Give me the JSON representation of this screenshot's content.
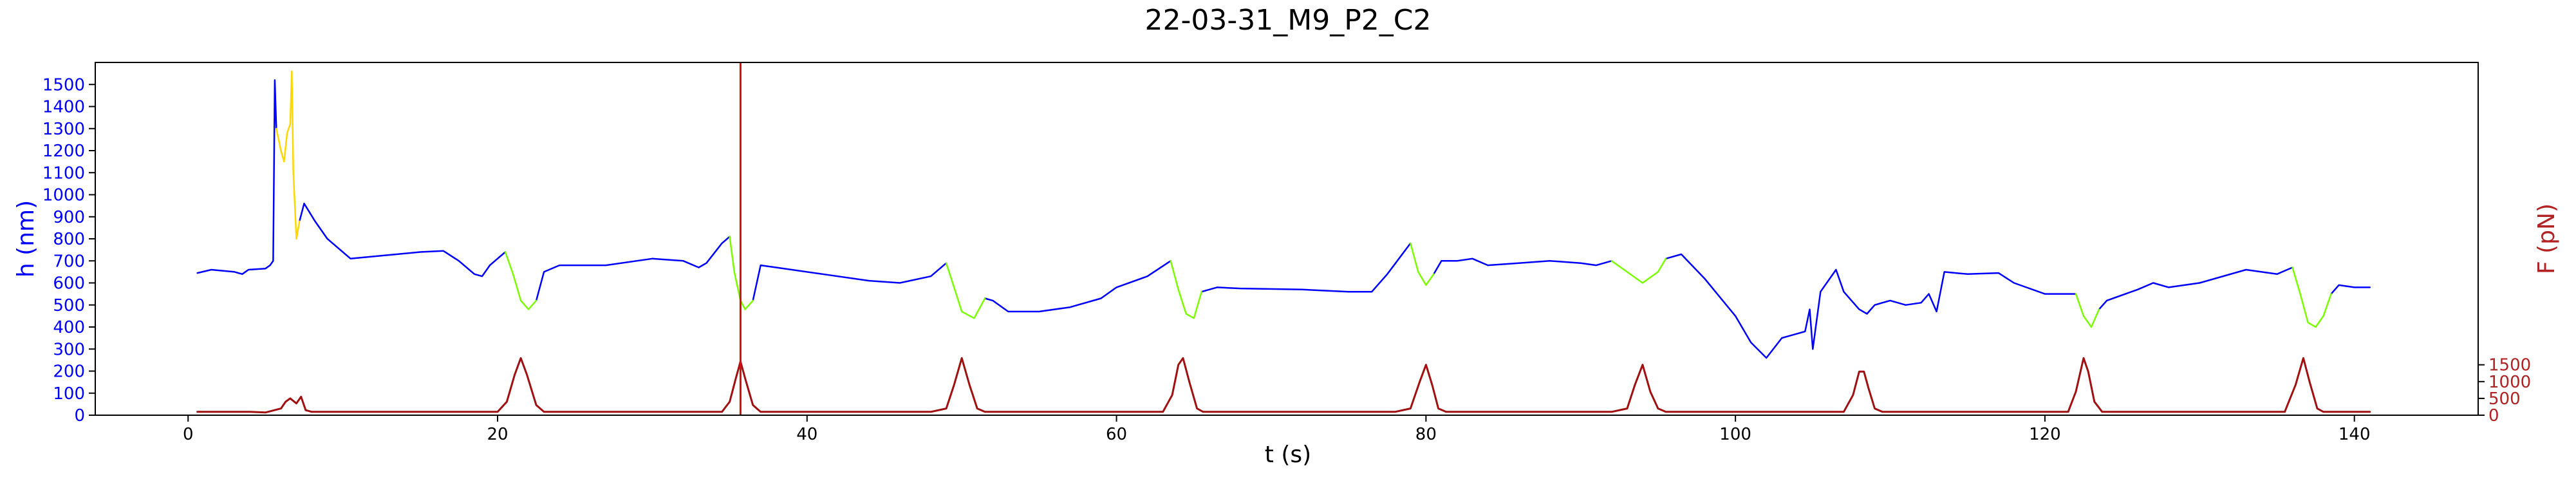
{
  "chart_data": {
    "type": "line",
    "title": "22-03-31_M9_P2_C2",
    "xlabel": "t (s)",
    "ylabel_left": "h (nm)",
    "ylabel_right": "F (pN)",
    "xlim": [
      -6,
      148
    ],
    "ylim_left": [
      0,
      1600
    ],
    "ylim_right": [
      0,
      10500
    ],
    "x_ticks": [
      0,
      20,
      40,
      60,
      80,
      100,
      120,
      140
    ],
    "y_left_ticks": [
      0,
      100,
      200,
      300,
      400,
      500,
      600,
      700,
      800,
      900,
      1000,
      1100,
      1200,
      1300,
      1400,
      1500
    ],
    "y_right_ticks": [
      0,
      500,
      1000,
      1500
    ],
    "colors": {
      "height": "#0000ff",
      "compression": "#7cfc00",
      "anomaly": "#ffd700",
      "force": "#a01010",
      "left_axis": "#0000ff",
      "right_axis": "#b22222",
      "marker": "#d01010"
    },
    "vertical_marker_x": 35.7,
    "series": [
      {
        "role": "height",
        "axis": "left",
        "segments": [
          [
            [
              0.6,
              645
            ],
            [
              1.5,
              660
            ],
            [
              3,
              650
            ],
            [
              3.5,
              640
            ],
            [
              3.9,
              660
            ],
            [
              5,
              665
            ],
            [
              5.3,
              680
            ],
            [
              5.5,
              700
            ],
            [
              5.6,
              1520
            ],
            [
              5.7,
              1300
            ]
          ],
          [
            [
              7.2,
              880
            ],
            [
              7.5,
              960
            ],
            [
              8.2,
              880
            ],
            [
              9,
              800
            ],
            [
              10.5,
              710
            ],
            [
              15,
              740
            ],
            [
              16.5,
              745
            ],
            [
              17.5,
              700
            ],
            [
              18.5,
              640
            ],
            [
              19,
              630
            ],
            [
              19.5,
              680
            ],
            [
              20.5,
              740
            ]
          ],
          [
            [
              22.5,
              520
            ],
            [
              23,
              650
            ],
            [
              24,
              680
            ],
            [
              27,
              680
            ],
            [
              30,
              710
            ],
            [
              32,
              700
            ],
            [
              33,
              670
            ],
            [
              33.5,
              690
            ],
            [
              34.5,
              780
            ],
            [
              35,
              810
            ]
          ],
          [
            [
              36.5,
              520
            ],
            [
              37,
              680
            ],
            [
              38,
              670
            ],
            [
              41,
              640
            ],
            [
              44,
              610
            ],
            [
              46,
              600
            ],
            [
              48,
              630
            ],
            [
              49,
              690
            ]
          ],
          [
            [
              51.5,
              530
            ],
            [
              52,
              520
            ],
            [
              53,
              470
            ],
            [
              55,
              470
            ],
            [
              57,
              490
            ],
            [
              59,
              530
            ],
            [
              60,
              580
            ],
            [
              62,
              630
            ],
            [
              63.5,
              700
            ]
          ],
          [
            [
              65.5,
              560
            ],
            [
              66.5,
              580
            ],
            [
              68,
              575
            ],
            [
              72,
              570
            ],
            [
              75,
              560
            ],
            [
              76.5,
              560
            ],
            [
              77.5,
              640
            ],
            [
              79,
              780
            ]
          ],
          [
            [
              80.5,
              640
            ],
            [
              81,
              700
            ],
            [
              82,
              700
            ],
            [
              83,
              710
            ],
            [
              84,
              680
            ],
            [
              86,
              690
            ],
            [
              88,
              700
            ],
            [
              90,
              690
            ],
            [
              91,
              680
            ],
            [
              92,
              700
            ]
          ],
          [
            [
              95.5,
              710
            ],
            [
              96.5,
              730
            ],
            [
              98,
              620
            ],
            [
              100,
              450
            ],
            [
              101,
              330
            ],
            [
              102,
              260
            ],
            [
              103,
              350
            ],
            [
              104,
              370
            ],
            [
              104.5,
              380
            ],
            [
              104.8,
              480
            ],
            [
              105,
              300
            ],
            [
              105.5,
              560
            ],
            [
              106.5,
              660
            ],
            [
              107,
              560
            ],
            [
              107.5,
              520
            ],
            [
              108,
              480
            ],
            [
              108.5,
              460
            ],
            [
              109,
              500
            ],
            [
              110,
              520
            ],
            [
              111,
              500
            ],
            [
              112,
              510
            ],
            [
              112.5,
              550
            ],
            [
              113,
              470
            ],
            [
              113.5,
              650
            ],
            [
              115,
              640
            ],
            [
              117,
              645
            ],
            [
              118,
              600
            ],
            [
              120,
              550
            ],
            [
              122,
              550
            ]
          ],
          [
            [
              123.5,
              480
            ],
            [
              124,
              520
            ],
            [
              126,
              570
            ],
            [
              127,
              600
            ],
            [
              128,
              580
            ],
            [
              130,
              600
            ],
            [
              133,
              660
            ],
            [
              134,
              650
            ],
            [
              135,
              640
            ],
            [
              136,
              670
            ]
          ],
          [
            [
              138.5,
              550
            ],
            [
              139,
              590
            ],
            [
              140,
              580
            ],
            [
              141,
              580
            ]
          ]
        ]
      },
      {
        "role": "compression",
        "axis": "left",
        "segments": [
          [
            [
              20.5,
              740
            ],
            [
              21,
              640
            ],
            [
              21.5,
              520
            ],
            [
              22,
              480
            ],
            [
              22.5,
              520
            ]
          ],
          [
            [
              35,
              810
            ],
            [
              35.3,
              650
            ],
            [
              35.7,
              520
            ],
            [
              36,
              480
            ],
            [
              36.5,
              520
            ]
          ],
          [
            [
              49,
              690
            ],
            [
              49.5,
              580
            ],
            [
              50,
              470
            ],
            [
              50.8,
              440
            ],
            [
              51.5,
              530
            ]
          ],
          [
            [
              63.5,
              700
            ],
            [
              64,
              570
            ],
            [
              64.5,
              460
            ],
            [
              65,
              440
            ],
            [
              65.5,
              560
            ]
          ],
          [
            [
              79,
              780
            ],
            [
              79.5,
              650
            ],
            [
              80,
              590
            ],
            [
              80.5,
              640
            ]
          ],
          [
            [
              92,
              700
            ],
            [
              93,
              650
            ],
            [
              94,
              600
            ],
            [
              95,
              650
            ],
            [
              95.5,
              710
            ]
          ],
          [
            [
              122,
              550
            ],
            [
              122.5,
              450
            ],
            [
              123,
              400
            ],
            [
              123.5,
              480
            ]
          ],
          [
            [
              136,
              670
            ],
            [
              136.5,
              550
            ],
            [
              137,
              420
            ],
            [
              137.5,
              400
            ],
            [
              138,
              450
            ],
            [
              138.5,
              550
            ]
          ]
        ]
      },
      {
        "role": "anomaly",
        "axis": "left",
        "segments": [
          [
            [
              5.7,
              1300
            ],
            [
              6,
              1200
            ],
            [
              6.2,
              1150
            ],
            [
              6.4,
              1280
            ],
            [
              6.6,
              1320
            ],
            [
              6.7,
              1560
            ],
            [
              6.8,
              1100
            ],
            [
              7,
              800
            ],
            [
              7.2,
              880
            ]
          ]
        ]
      },
      {
        "role": "force",
        "axis": "right",
        "segments": [
          [
            [
              0.6,
              100
            ],
            [
              4,
              100
            ],
            [
              5,
              80
            ],
            [
              6,
              200
            ],
            [
              6.3,
              400
            ],
            [
              6.6,
              500
            ],
            [
              7,
              350
            ],
            [
              7.3,
              550
            ],
            [
              7.6,
              150
            ],
            [
              8,
              100
            ],
            [
              19,
              100
            ],
            [
              20,
              100
            ],
            [
              20.6,
              400
            ],
            [
              21.1,
              1200
            ],
            [
              21.5,
              1700
            ],
            [
              21.9,
              1200
            ],
            [
              22.5,
              300
            ],
            [
              23,
              100
            ],
            [
              33,
              100
            ],
            [
              34.5,
              100
            ],
            [
              35,
              400
            ],
            [
              35.4,
              1100
            ],
            [
              35.7,
              1600
            ],
            [
              36,
              1100
            ],
            [
              36.5,
              300
            ],
            [
              37,
              100
            ],
            [
              48,
              100
            ],
            [
              49,
              200
            ],
            [
              49.5,
              900
            ],
            [
              50,
              1700
            ],
            [
              50.5,
              900
            ],
            [
              51,
              200
            ],
            [
              51.5,
              100
            ],
            [
              61,
              100
            ],
            [
              63,
              100
            ],
            [
              63.6,
              600
            ],
            [
              64,
              1500
            ],
            [
              64.3,
              1700
            ],
            [
              64.7,
              1000
            ],
            [
              65.2,
              200
            ],
            [
              65.6,
              100
            ],
            [
              78,
              100
            ],
            [
              79,
              200
            ],
            [
              79.6,
              1000
            ],
            [
              80,
              1500
            ],
            [
              80.4,
              900
            ],
            [
              80.8,
              200
            ],
            [
              81.3,
              100
            ],
            [
              92,
              100
            ],
            [
              93,
              200
            ],
            [
              93.5,
              900
            ],
            [
              94,
              1500
            ],
            [
              94.5,
              700
            ],
            [
              95,
              200
            ],
            [
              95.5,
              100
            ],
            [
              105,
              100
            ],
            [
              107,
              100
            ],
            [
              107.6,
              600
            ],
            [
              108,
              1300
            ],
            [
              108.3,
              1300
            ],
            [
              108.6,
              800
            ],
            [
              109,
              200
            ],
            [
              109.5,
              100
            ],
            [
              120,
              100
            ],
            [
              121.5,
              100
            ],
            [
              122,
              700
            ],
            [
              122.5,
              1700
            ],
            [
              122.8,
              1300
            ],
            [
              123.2,
              400
            ],
            [
              123.7,
              100
            ],
            [
              134,
              100
            ],
            [
              135.5,
              100
            ],
            [
              136.2,
              900
            ],
            [
              136.7,
              1700
            ],
            [
              137.1,
              1000
            ],
            [
              137.6,
              200
            ],
            [
              138,
              100
            ],
            [
              141,
              100
            ]
          ]
        ]
      }
    ]
  }
}
